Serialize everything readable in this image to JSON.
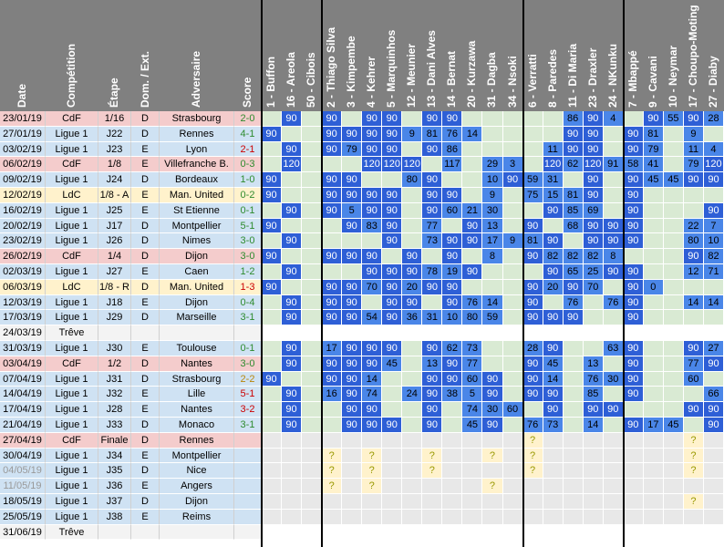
{
  "columns": {
    "match": [
      "Date",
      "Compétition",
      "Étape",
      "Dom. / Ext.",
      "Adversaire",
      "Score"
    ],
    "players": [
      {
        "name": "1 - Buffon",
        "group": "gk"
      },
      {
        "name": "16 - Areola",
        "group": "gk"
      },
      {
        "name": "50 - Cibois",
        "group": "gk"
      },
      {
        "name": "2 - Thiago Silva",
        "group": "def"
      },
      {
        "name": "3 - Kimpembe",
        "group": "def"
      },
      {
        "name": "4 - Kehrer",
        "group": "def"
      },
      {
        "name": "5 - Marquinhos",
        "group": "def"
      },
      {
        "name": "12 - Meunier",
        "group": "def"
      },
      {
        "name": "13 - Dani Alves",
        "group": "def"
      },
      {
        "name": "14 - Bernat",
        "group": "def"
      },
      {
        "name": "20 - Kurzawa",
        "group": "def"
      },
      {
        "name": "31 - Dagba",
        "group": "def"
      },
      {
        "name": "34 - Nsoki",
        "group": "def"
      },
      {
        "name": "6 - Verratti",
        "group": "mid"
      },
      {
        "name": "8 - Paredes",
        "group": "mid"
      },
      {
        "name": "11 - Di Maria",
        "group": "mid"
      },
      {
        "name": "23 - Draxler",
        "group": "mid"
      },
      {
        "name": "24 - NKunku",
        "group": "mid"
      },
      {
        "name": "7 - Mbappé",
        "group": "fwd"
      },
      {
        "name": "9 - Cavani",
        "group": "fwd"
      },
      {
        "name": "10 - Neymar",
        "group": "fwd"
      },
      {
        "name": "17 - Choupo-Moting",
        "group": "fwd"
      },
      {
        "name": "27 - Diaby",
        "group": "fwd"
      }
    ]
  },
  "colors": {
    "header_bg": "#808080",
    "header_text": "#ffffff",
    "cdf": "#f4cccc",
    "ligue1": "#cfe2f3",
    "ldc": "#fff2cc",
    "treve": "#f3f3f3",
    "past_date": "#999999",
    "score_win": "#2e8b2e",
    "score_draw": "#b8860b",
    "score_loss": "#cc0000",
    "played": "#4a86e8",
    "full90": "#2e5fd6",
    "bench": "#d9ead3",
    "pending": "#e8e8e8",
    "injured": "#e06666",
    "susp": "#f9cb9c",
    "doubt": "#fff2cc"
  },
  "rows": [
    {
      "date": "23/01/19",
      "comp": "CdF",
      "etape": "1/16",
      "de": "D",
      "adv": "Strasbourg",
      "score": "2-0",
      "res": "W",
      "cells": [
        "",
        "90",
        "",
        "90",
        "",
        "90",
        "90",
        "",
        "90",
        "90",
        "",
        "",
        "",
        "",
        "",
        "86",
        "90",
        "4",
        "",
        "90",
        "55",
        "90",
        "28"
      ]
    },
    {
      "date": "27/01/19",
      "comp": "Ligue 1",
      "etape": "J22",
      "de": "D",
      "adv": "Rennes",
      "score": "4-1",
      "res": "W",
      "cells": [
        "90",
        "",
        "",
        "90",
        "90",
        "90",
        "90",
        "9",
        "81",
        "76",
        "14",
        "",
        "",
        "",
        "",
        "90",
        "90",
        "",
        "90",
        "81",
        "",
        "9",
        ""
      ]
    },
    {
      "date": "03/02/19",
      "comp": "Ligue 1",
      "etape": "J23",
      "de": "E",
      "adv": "Lyon",
      "score": "2-1",
      "res": "L",
      "cells": [
        "",
        "90",
        "",
        "90",
        "79",
        "90",
        "90",
        "",
        "90",
        "86",
        "",
        "",
        "",
        "",
        "11",
        "90",
        "90",
        "",
        "90",
        "79",
        "",
        "11",
        "4"
      ]
    },
    {
      "date": "06/02/19",
      "comp": "CdF",
      "etape": "1/8",
      "de": "E",
      "adv": "Villefranche B.",
      "score": "0-3",
      "res": "W",
      "cells": [
        "",
        "120",
        "",
        "",
        "",
        "120",
        "120",
        "120",
        "",
        "117",
        "",
        "29",
        "3",
        "",
        "120",
        "62",
        "120",
        "91",
        "58",
        "41",
        "",
        "79",
        "120"
      ]
    },
    {
      "date": "09/02/19",
      "comp": "Ligue 1",
      "etape": "J24",
      "de": "D",
      "adv": "Bordeaux",
      "score": "1-0",
      "res": "W",
      "cells": [
        "90",
        "",
        "",
        "90",
        "90",
        "",
        "",
        "80",
        "90",
        "",
        "",
        "10",
        "90",
        "59",
        "31",
        "",
        "90",
        "",
        "90",
        "45",
        "45",
        "90",
        "90"
      ]
    },
    {
      "date": "12/02/19",
      "comp": "LdC",
      "etape": "1/8 - A",
      "de": "E",
      "adv": "Man. United",
      "score": "0-2",
      "res": "W",
      "cells": [
        "90",
        "",
        "",
        "90",
        "90",
        "90",
        "90",
        "",
        "90",
        "90",
        "",
        "9",
        "",
        "75",
        "15",
        "81",
        "90",
        "",
        "90",
        "",
        "",
        "",
        ""
      ]
    },
    {
      "date": "16/02/19",
      "comp": "Ligue 1",
      "etape": "J25",
      "de": "E",
      "adv": "St Etienne",
      "score": "0-1",
      "res": "W",
      "cells": [
        "",
        "90",
        "",
        "90",
        "5",
        "90",
        "90",
        "",
        "90",
        "60",
        "21",
        "30",
        "",
        "",
        "90",
        "85",
        "69",
        "",
        "90",
        "",
        "",
        "",
        "90"
      ]
    },
    {
      "date": "20/02/19",
      "comp": "Ligue 1",
      "etape": "J17",
      "de": "D",
      "adv": "Montpellier",
      "score": "5-1",
      "res": "W",
      "cells": [
        "90",
        "",
        "",
        "",
        "90",
        "83",
        "90",
        "",
        "77",
        "",
        "90",
        "13",
        "",
        "90",
        "",
        "68",
        "90",
        "90",
        "90",
        "",
        "",
        "22",
        "7"
      ]
    },
    {
      "date": "23/02/19",
      "comp": "Ligue 1",
      "etape": "J26",
      "de": "D",
      "adv": "Nimes",
      "score": "3-0",
      "res": "W",
      "cells": [
        "",
        "90",
        "",
        "",
        "",
        "",
        "90",
        "",
        "73",
        "90",
        "90",
        "17",
        "9",
        "81",
        "90",
        "",
        "90",
        "90",
        "90",
        "",
        "",
        "80",
        "10"
      ]
    },
    {
      "date": "26/02/19",
      "comp": "CdF",
      "etape": "1/4",
      "de": "D",
      "adv": "Dijon",
      "score": "3-0",
      "res": "W",
      "cells": [
        "90",
        "",
        "",
        "90",
        "90",
        "90",
        "",
        "90",
        "",
        "90",
        "",
        "8",
        "",
        "90",
        "82",
        "82",
        "82",
        "8",
        "",
        "",
        "",
        "90",
        "82"
      ]
    },
    {
      "date": "02/03/19",
      "comp": "Ligue 1",
      "etape": "J27",
      "de": "E",
      "adv": "Caen",
      "score": "1-2",
      "res": "W",
      "cells": [
        "",
        "90",
        "",
        "",
        "",
        "90",
        "90",
        "90",
        "78",
        "19",
        "90",
        "",
        "",
        "",
        "90",
        "65",
        "25",
        "90",
        "90",
        "",
        "",
        "12",
        "71"
      ]
    },
    {
      "date": "06/03/19",
      "comp": "LdC",
      "etape": "1/8 - R",
      "de": "D",
      "adv": "Man. United",
      "score": "1-3",
      "res": "L",
      "cells": [
        "90",
        "",
        "",
        "90",
        "90",
        "70",
        "90",
        "20",
        "90",
        "90",
        "",
        "",
        "",
        "90",
        "20",
        "90",
        "70",
        "",
        "90",
        "0",
        "",
        "",
        ""
      ]
    },
    {
      "date": "12/03/19",
      "comp": "Ligue 1",
      "etape": "J18",
      "de": "E",
      "adv": "Dijon",
      "score": "0-4",
      "res": "W",
      "cells": [
        "",
        "90",
        "",
        "90",
        "90",
        "",
        "90",
        "90",
        "",
        "90",
        "76",
        "14",
        "",
        "90",
        "",
        "76",
        "",
        "76",
        "90",
        "",
        "",
        "14",
        "14"
      ]
    },
    {
      "date": "17/03/19",
      "comp": "Ligue 1",
      "etape": "J29",
      "de": "D",
      "adv": "Marseille",
      "score": "3-1",
      "res": "W",
      "cells": [
        "",
        "90",
        "",
        "90",
        "90",
        "54",
        "90",
        "36",
        "31",
        "10",
        "80",
        "59",
        "",
        "90",
        "90",
        "90",
        "",
        "",
        "90",
        "",
        "",
        "",
        ""
      ]
    },
    {
      "date": "24/03/19",
      "comp": "Trêve",
      "treve": true
    },
    {
      "date": "31/03/19",
      "comp": "Ligue 1",
      "etape": "J30",
      "de": "E",
      "adv": "Toulouse",
      "score": "0-1",
      "res": "W",
      "cells": [
        "",
        "90",
        "",
        "17",
        "90",
        "90",
        "90",
        "",
        "90",
        "62",
        "73",
        "",
        "",
        "28",
        "90",
        "",
        "",
        "63",
        "90",
        "",
        "",
        "90",
        "27"
      ]
    },
    {
      "date": "03/04/19",
      "comp": "CdF",
      "etape": "1/2",
      "de": "D",
      "adv": "Nantes",
      "score": "3-0",
      "res": "W",
      "cells": [
        "",
        "90",
        "",
        "90",
        "90",
        "90",
        "45",
        "",
        "13",
        "90",
        "77",
        "",
        "",
        "90",
        "45",
        "",
        "13",
        "",
        "90",
        "",
        "",
        "77",
        "90"
      ]
    },
    {
      "date": "07/04/19",
      "comp": "Ligue 1",
      "etape": "J31",
      "de": "D",
      "adv": "Strasbourg",
      "score": "2-2",
      "res": "D",
      "cells": [
        "90",
        "",
        "",
        "90",
        "90",
        "14",
        "",
        "",
        "90",
        "90",
        "60",
        "90",
        "",
        "90",
        "14",
        "",
        "76",
        "30",
        "90",
        "",
        "",
        "60",
        ""
      ]
    },
    {
      "date": "14/04/19",
      "comp": "Ligue 1",
      "etape": "J32",
      "de": "E",
      "adv": "Lille",
      "score": "5-1",
      "res": "L",
      "cells": [
        "",
        "90",
        "",
        "16",
        "90",
        "74",
        "",
        "24",
        "90",
        "38",
        "5",
        "90",
        "",
        "90",
        "90",
        "",
        "85",
        "",
        "90",
        "",
        "",
        "",
        "66"
      ]
    },
    {
      "date": "17/04/19",
      "comp": "Ligue 1",
      "etape": "J28",
      "de": "E",
      "adv": "Nantes",
      "score": "3-2",
      "res": "L",
      "cells": [
        "",
        "90",
        "",
        "",
        "90",
        "90",
        "",
        "",
        "90",
        "",
        "74",
        "30",
        "60",
        "",
        "90",
        "",
        "90",
        "90",
        "",
        "",
        "",
        "90",
        "90"
      ]
    },
    {
      "date": "21/04/19",
      "comp": "Ligue 1",
      "etape": "J33",
      "de": "D",
      "adv": "Monaco",
      "score": "3-1",
      "res": "W",
      "cells": [
        "",
        "90",
        "",
        "",
        "90",
        "90",
        "90",
        "",
        "90",
        "",
        "45",
        "90",
        "",
        "76",
        "73",
        "",
        "14",
        "",
        "90",
        "17",
        "45",
        "",
        "90"
      ]
    },
    {
      "date": "27/04/19",
      "comp": "CdF",
      "etape": "Finale",
      "de": "D",
      "adv": "Rennes",
      "future": true
    },
    {
      "date": "30/04/19",
      "comp": "Ligue 1",
      "etape": "J34",
      "de": "E",
      "adv": "Montpellier",
      "future": true
    },
    {
      "date": "04/05/19",
      "comp": "Ligue 1",
      "etape": "J35",
      "de": "D",
      "adv": "Nice",
      "future": true,
      "dim": true
    },
    {
      "date": "11/05/19",
      "comp": "Ligue 1",
      "etape": "J36",
      "de": "E",
      "adv": "Angers",
      "future": true,
      "dim": true
    },
    {
      "date": "18/05/19",
      "comp": "Ligue 1",
      "etape": "J37",
      "de": "D",
      "adv": "Dijon",
      "future": true
    },
    {
      "date": "25/05/19",
      "comp": "Ligue 1",
      "etape": "J38",
      "de": "E",
      "adv": "Reims",
      "future": true
    },
    {
      "date": "31/06/19",
      "comp": "Trêve",
      "treve": true
    }
  ],
  "future_marks": [
    {
      "col": 3,
      "rows": [
        22,
        23,
        24
      ]
    },
    {
      "col": 5,
      "rows": [
        22,
        23,
        24
      ]
    },
    {
      "col": 8,
      "rows": [
        22,
        23
      ]
    },
    {
      "col": 11,
      "rows": [
        22,
        24
      ]
    },
    {
      "col": 13,
      "rows": [
        21,
        22,
        23
      ]
    },
    {
      "col": 21,
      "rows": [
        21,
        22,
        23,
        25
      ]
    }
  ],
  "future_symbol": "?"
}
